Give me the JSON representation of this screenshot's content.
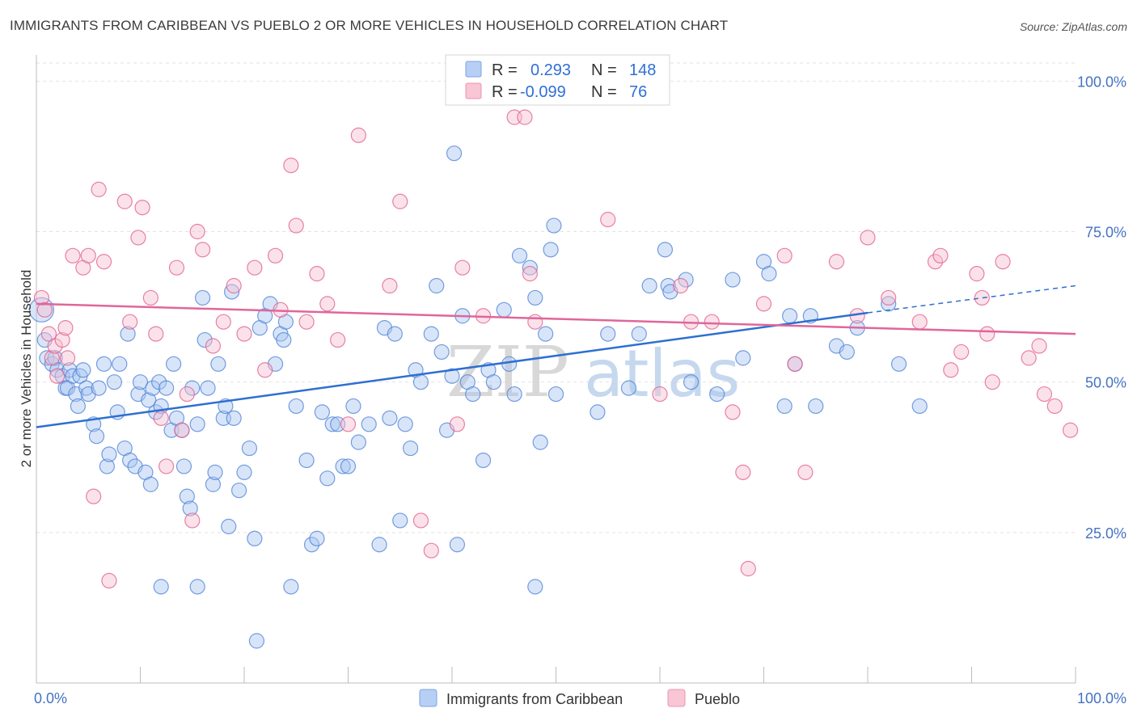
{
  "header": {
    "title": "IMMIGRANTS FROM CARIBBEAN VS PUEBLO 2 OR MORE VEHICLES IN HOUSEHOLD CORRELATION CHART",
    "source": "Source: ZipAtlas.com"
  },
  "watermark": {
    "zip": "ZIP",
    "atlas": "atlas"
  },
  "legend": {
    "rows": [
      {
        "r_label": "R =",
        "r_value": "0.293",
        "n_label": "N =",
        "n_value": "148",
        "color": "#9dbcf0"
      },
      {
        "r_label": "R =",
        "r_value": "-0.099",
        "n_label": "N =",
        "n_value": "76",
        "color": "#f4a9c0"
      }
    ]
  },
  "chart_data": {
    "type": "scatter",
    "title": "IMMIGRANTS FROM CARIBBEAN VS PUEBLO 2 OR MORE VEHICLES IN HOUSEHOLD CORRELATION CHART",
    "xlabel": "",
    "ylabel": "2 or more Vehicles in Household",
    "xlim": [
      0,
      100
    ],
    "ylim": [
      0,
      103
    ],
    "x_tick_labels": [
      "0.0%",
      "100.0%"
    ],
    "y_tick_labels": [
      "25.0%",
      "50.0%",
      "75.0%",
      "100.0%"
    ],
    "y_ticks": [
      25,
      50,
      75,
      100
    ],
    "grid": true,
    "legend_position": "top-center",
    "series": [
      {
        "name": "Immigrants from Caribbean",
        "color": "#4a7fd4",
        "fill": "#a9c6f2",
        "trend": {
          "x": [
            0,
            80
          ],
          "y": [
            42.5,
            61.5
          ],
          "dash_to": [
            100,
            66
          ]
        },
        "points": [
          [
            0.5,
            62
          ],
          [
            0.8,
            57
          ],
          [
            1.0,
            54
          ],
          [
            1.5,
            53
          ],
          [
            1.8,
            54
          ],
          [
            2.0,
            52
          ],
          [
            2.5,
            51
          ],
          [
            2.8,
            49
          ],
          [
            3.0,
            49
          ],
          [
            3.2,
            52
          ],
          [
            3.5,
            51
          ],
          [
            3.8,
            48
          ],
          [
            4.0,
            46
          ],
          [
            4.2,
            51
          ],
          [
            4.5,
            52
          ],
          [
            4.8,
            49
          ],
          [
            5.0,
            48
          ],
          [
            5.5,
            43
          ],
          [
            5.8,
            41
          ],
          [
            6.0,
            49
          ],
          [
            6.5,
            53
          ],
          [
            6.8,
            36
          ],
          [
            7.0,
            38
          ],
          [
            7.5,
            50
          ],
          [
            7.8,
            45
          ],
          [
            8.0,
            53
          ],
          [
            8.5,
            39
          ],
          [
            8.8,
            58
          ],
          [
            9.0,
            37
          ],
          [
            9.5,
            36
          ],
          [
            9.8,
            48
          ],
          [
            10.0,
            50
          ],
          [
            10.5,
            35
          ],
          [
            10.8,
            47
          ],
          [
            11.0,
            33
          ],
          [
            11.2,
            49
          ],
          [
            11.5,
            45
          ],
          [
            11.8,
            50
          ],
          [
            12.0,
            46
          ],
          [
            12.5,
            49
          ],
          [
            13.0,
            42
          ],
          [
            13.2,
            53
          ],
          [
            13.5,
            44
          ],
          [
            14.0,
            42
          ],
          [
            14.2,
            36
          ],
          [
            14.5,
            31
          ],
          [
            14.8,
            29
          ],
          [
            15.0,
            49
          ],
          [
            15.5,
            43
          ],
          [
            16.0,
            64
          ],
          [
            16.2,
            57
          ],
          [
            16.5,
            49
          ],
          [
            17.0,
            33
          ],
          [
            17.2,
            35
          ],
          [
            17.5,
            53
          ],
          [
            18.0,
            44
          ],
          [
            18.2,
            46
          ],
          [
            18.5,
            26
          ],
          [
            18.8,
            65
          ],
          [
            19.0,
            44
          ],
          [
            19.5,
            32
          ],
          [
            20.0,
            35
          ],
          [
            20.5,
            39
          ],
          [
            21.0,
            24
          ],
          [
            21.5,
            59
          ],
          [
            22.0,
            61
          ],
          [
            22.5,
            63
          ],
          [
            23.0,
            53
          ],
          [
            23.5,
            58
          ],
          [
            23.8,
            57
          ],
          [
            24.0,
            60
          ],
          [
            25.0,
            46
          ],
          [
            26.0,
            37
          ],
          [
            26.5,
            23
          ],
          [
            27.0,
            24
          ],
          [
            27.5,
            45
          ],
          [
            28.0,
            34
          ],
          [
            28.5,
            43
          ],
          [
            29.0,
            43
          ],
          [
            29.5,
            36
          ],
          [
            30.0,
            36
          ],
          [
            30.5,
            46
          ],
          [
            31.0,
            40
          ],
          [
            32.0,
            43
          ],
          [
            33.0,
            23
          ],
          [
            33.5,
            59
          ],
          [
            34.0,
            44
          ],
          [
            34.5,
            58
          ],
          [
            35.0,
            27
          ],
          [
            36.0,
            39
          ],
          [
            36.5,
            52
          ],
          [
            37.0,
            50
          ],
          [
            38.0,
            58
          ],
          [
            38.5,
            66
          ],
          [
            39.0,
            55
          ],
          [
            40.0,
            51
          ],
          [
            40.5,
            23
          ],
          [
            41.0,
            61
          ],
          [
            41.5,
            50
          ],
          [
            42.0,
            48
          ],
          [
            43.0,
            37
          ],
          [
            43.5,
            52
          ],
          [
            44.0,
            50
          ],
          [
            45.0,
            62
          ],
          [
            45.5,
            53
          ],
          [
            46.5,
            71
          ],
          [
            47.5,
            69
          ],
          [
            48.0,
            64
          ],
          [
            49.0,
            58
          ],
          [
            50.0,
            48
          ],
          [
            55.0,
            58
          ],
          [
            57.0,
            49
          ],
          [
            59.0,
            66
          ],
          [
            60.5,
            72
          ],
          [
            60.8,
            66
          ],
          [
            61.0,
            65
          ],
          [
            62.5,
            67
          ],
          [
            65.5,
            48
          ],
          [
            67.0,
            67
          ],
          [
            68.0,
            54
          ],
          [
            70.0,
            70
          ],
          [
            70.5,
            68
          ],
          [
            72.0,
            46
          ],
          [
            72.5,
            61
          ],
          [
            73.0,
            53
          ],
          [
            74.5,
            61
          ],
          [
            75.0,
            46
          ],
          [
            77.0,
            56
          ],
          [
            78.0,
            55
          ],
          [
            79.0,
            59
          ],
          [
            82.0,
            63
          ],
          [
            83.0,
            53
          ],
          [
            85.0,
            46
          ],
          [
            58.0,
            58
          ],
          [
            63.0,
            50
          ],
          [
            54.0,
            45
          ],
          [
            39.5,
            42
          ],
          [
            35.5,
            43
          ],
          [
            46.0,
            48
          ],
          [
            48.5,
            40
          ],
          [
            40.2,
            88
          ],
          [
            49.5,
            72
          ],
          [
            49.8,
            76
          ],
          [
            24.5,
            16
          ],
          [
            21.2,
            7
          ],
          [
            15.5,
            16
          ],
          [
            12.0,
            16
          ],
          [
            48.0,
            16
          ]
        ]
      },
      {
        "name": "Pueblo",
        "color": "#e05a8a",
        "fill": "#f7bfd0",
        "trend": {
          "x": [
            0,
            100
          ],
          "y": [
            63,
            58
          ]
        },
        "points": [
          [
            0.5,
            64
          ],
          [
            0.8,
            62
          ],
          [
            1.2,
            58
          ],
          [
            1.5,
            54
          ],
          [
            1.8,
            56
          ],
          [
            2.0,
            51
          ],
          [
            2.5,
            57
          ],
          [
            2.8,
            59
          ],
          [
            3.0,
            54
          ],
          [
            3.5,
            71
          ],
          [
            4.5,
            69
          ],
          [
            5.0,
            71
          ],
          [
            5.5,
            31
          ],
          [
            6.0,
            82
          ],
          [
            6.5,
            70
          ],
          [
            7.0,
            17
          ],
          [
            8.5,
            80
          ],
          [
            9.0,
            60
          ],
          [
            9.8,
            74
          ],
          [
            10.2,
            79
          ],
          [
            11.0,
            64
          ],
          [
            11.5,
            58
          ],
          [
            12.0,
            44
          ],
          [
            12.5,
            36
          ],
          [
            13.5,
            69
          ],
          [
            14.0,
            42
          ],
          [
            14.5,
            48
          ],
          [
            15.0,
            27
          ],
          [
            15.5,
            75
          ],
          [
            16.0,
            72
          ],
          [
            17.0,
            56
          ],
          [
            18.0,
            60
          ],
          [
            19.0,
            66
          ],
          [
            20.0,
            58
          ],
          [
            21.0,
            69
          ],
          [
            22.0,
            52
          ],
          [
            23.0,
            71
          ],
          [
            23.5,
            62
          ],
          [
            24.5,
            86
          ],
          [
            25.0,
            76
          ],
          [
            26.0,
            60
          ],
          [
            27.0,
            68
          ],
          [
            28.0,
            63
          ],
          [
            29.0,
            57
          ],
          [
            30.0,
            43
          ],
          [
            31.0,
            91
          ],
          [
            34.0,
            66
          ],
          [
            35.0,
            80
          ],
          [
            37.0,
            27
          ],
          [
            38.0,
            22
          ],
          [
            40.5,
            43
          ],
          [
            41.0,
            69
          ],
          [
            43.0,
            61
          ],
          [
            46.0,
            94
          ],
          [
            47.0,
            94
          ],
          [
            47.5,
            68
          ],
          [
            48.0,
            60
          ],
          [
            55.0,
            77
          ],
          [
            60.0,
            48
          ],
          [
            62.0,
            66
          ],
          [
            63.0,
            60
          ],
          [
            65.0,
            60
          ],
          [
            67.0,
            45
          ],
          [
            68.0,
            35
          ],
          [
            68.5,
            19
          ],
          [
            70.0,
            63
          ],
          [
            72.0,
            71
          ],
          [
            73.0,
            53
          ],
          [
            74.0,
            35
          ],
          [
            77.0,
            70
          ],
          [
            79.0,
            61
          ],
          [
            80.0,
            74
          ],
          [
            82.0,
            64
          ],
          [
            85.0,
            60
          ],
          [
            86.5,
            70
          ],
          [
            87.0,
            71
          ],
          [
            88.0,
            52
          ],
          [
            89.0,
            55
          ],
          [
            90.5,
            68
          ],
          [
            91.0,
            64
          ],
          [
            91.5,
            58
          ],
          [
            92.0,
            50
          ],
          [
            93.0,
            70
          ],
          [
            95.5,
            54
          ],
          [
            96.5,
            56
          ],
          [
            97.0,
            48
          ],
          [
            98.0,
            46
          ],
          [
            99.5,
            42
          ]
        ]
      }
    ]
  },
  "bottom_legend": [
    {
      "label": "Immigrants from Caribbean"
    },
    {
      "label": "Pueblo"
    }
  ]
}
